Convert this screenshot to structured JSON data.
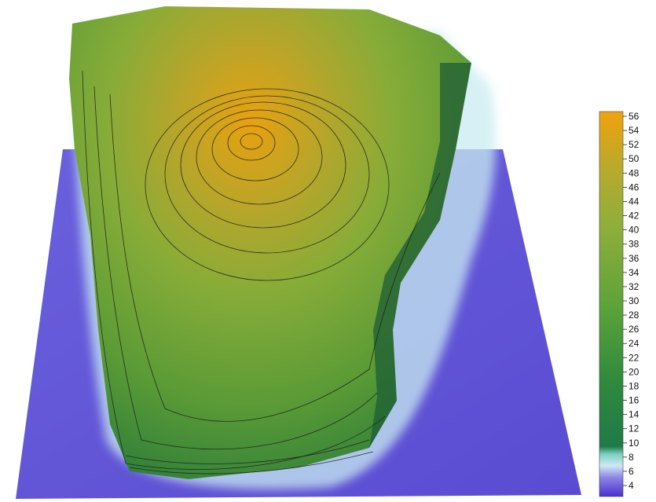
{
  "scene": {
    "description_type": "3d-terrain-relief",
    "colors": {
      "water": "#5a4fd6",
      "shallow": "#a9e6ea",
      "low_land": "#1f7a3a",
      "mid_land": "#7fa83a",
      "high_land": "#e7a30f",
      "contour": "#1a1a1a"
    }
  },
  "colorbar": {
    "ticks": [
      "56",
      "54",
      "52",
      "50",
      "48",
      "46",
      "44",
      "42",
      "40",
      "38",
      "36",
      "34",
      "32",
      "30",
      "28",
      "26",
      "24",
      "22",
      "20",
      "18",
      "16",
      "14",
      "12",
      "10",
      "8",
      "6",
      "4"
    ],
    "stops": [
      {
        "value": 4,
        "color": "#4a2fd0"
      },
      {
        "value": 6,
        "color": "#8f86e6"
      },
      {
        "value": 7,
        "color": "#cfe9f5"
      },
      {
        "value": 8,
        "color": "#7dcfc0"
      },
      {
        "value": 9,
        "color": "#1f7a48"
      },
      {
        "value": 14,
        "color": "#2f8a3c"
      },
      {
        "value": 24,
        "color": "#5ea33a"
      },
      {
        "value": 34,
        "color": "#8fae3a"
      },
      {
        "value": 44,
        "color": "#b8aa2c"
      },
      {
        "value": 56,
        "color": "#f0a20c"
      }
    ]
  }
}
